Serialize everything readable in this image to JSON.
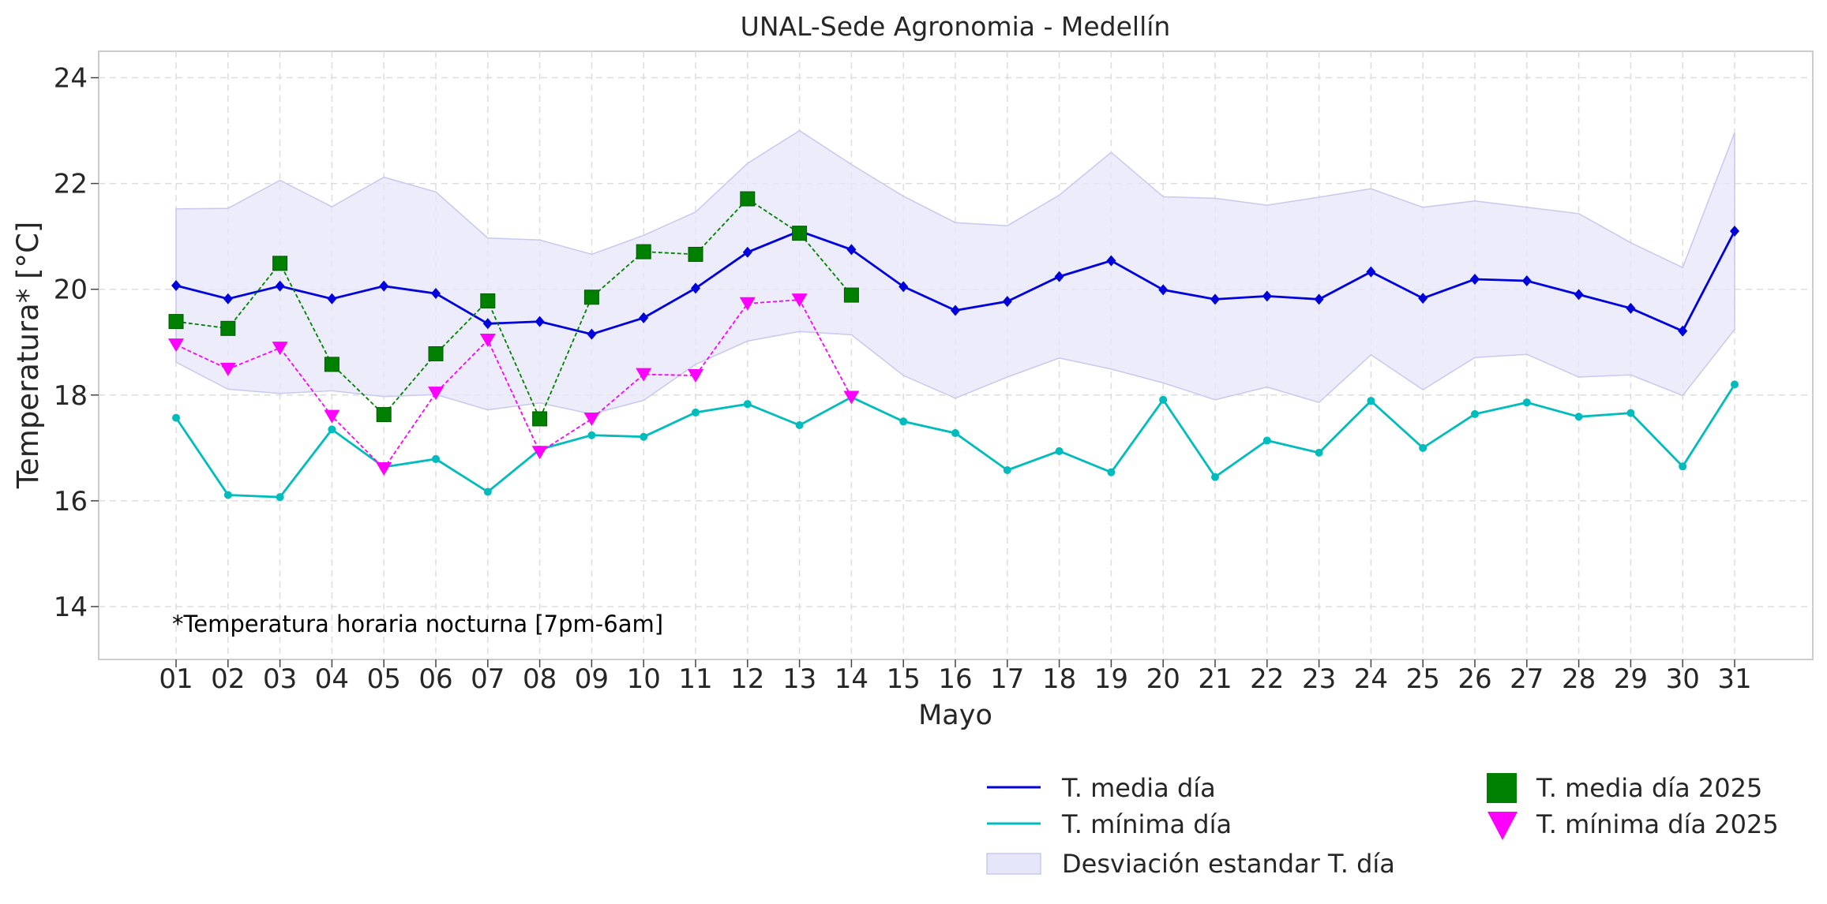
{
  "chart_data": {
    "type": "line",
    "title": "UNAL-Sede Agronomia - Medellín",
    "xlabel": "Mayo",
    "ylabel": "Temperatura* [°C]",
    "annotation": "*Temperatura horaria nocturna [7pm-6am]",
    "ylim": [
      13,
      24.5
    ],
    "yticks": [
      "14",
      "16",
      "18",
      "20",
      "22",
      "24"
    ],
    "categories": [
      "01",
      "02",
      "03",
      "04",
      "05",
      "06",
      "07",
      "08",
      "09",
      "10",
      "11",
      "12",
      "13",
      "14",
      "15",
      "16",
      "17",
      "18",
      "19",
      "20",
      "21",
      "22",
      "23",
      "24",
      "25",
      "26",
      "27",
      "28",
      "29",
      "30",
      "31"
    ],
    "grid": true,
    "legend_position": "bottom-right",
    "series": [
      {
        "name": "T. media día",
        "color": "#0000dd",
        "style": "solid",
        "marker": "diamond",
        "values": [
          20.07,
          19.82,
          20.06,
          19.82,
          20.06,
          19.92,
          19.35,
          19.39,
          19.15,
          19.46,
          20.02,
          20.7,
          21.1,
          20.75,
          20.05,
          19.6,
          19.77,
          20.24,
          20.54,
          19.99,
          19.81,
          19.87,
          19.81,
          20.33,
          19.83,
          20.19,
          20.16,
          19.9,
          19.64,
          19.21,
          21.1
        ]
      },
      {
        "name": "T. mínima día",
        "color": "#00bcbc",
        "style": "solid",
        "marker": "circle",
        "values": [
          17.57,
          16.11,
          16.07,
          17.35,
          16.64,
          16.79,
          16.17,
          16.97,
          17.24,
          17.21,
          17.67,
          17.83,
          17.43,
          17.96,
          17.5,
          17.28,
          16.58,
          16.94,
          16.54,
          17.91,
          16.45,
          17.14,
          16.91,
          17.89,
          17.0,
          17.64,
          17.86,
          17.59,
          17.66,
          16.65,
          18.2
        ]
      },
      {
        "name": "T. media día 2025",
        "color": "#008000",
        "style": "dashed",
        "marker": "square",
        "values": [
          19.39,
          19.26,
          20.49,
          18.58,
          17.63,
          18.78,
          19.78,
          17.55,
          19.85,
          20.71,
          20.66,
          21.71,
          21.06,
          19.89,
          null,
          null,
          null,
          null,
          null,
          null,
          null,
          null,
          null,
          null,
          null,
          null,
          null,
          null,
          null,
          null,
          null
        ]
      },
      {
        "name": "T. mínima día 2025",
        "color": "#ff00ff",
        "style": "dashed",
        "marker": "triangle-down",
        "values": [
          18.95,
          18.49,
          18.89,
          17.6,
          16.61,
          18.04,
          19.04,
          16.92,
          17.55,
          18.39,
          18.37,
          19.73,
          19.8,
          17.96,
          null,
          null,
          null,
          null,
          null,
          null,
          null,
          null,
          null,
          null,
          null,
          null,
          null,
          null,
          null,
          null,
          null
        ]
      }
    ],
    "band": {
      "name": "Desviación estandar T. día",
      "color": "#e6e6fa",
      "edge_color": "#c8c8f0",
      "upper": [
        21.52,
        21.53,
        22.06,
        21.56,
        22.12,
        21.84,
        20.97,
        20.93,
        20.66,
        21.02,
        21.46,
        22.38,
        23.0,
        22.36,
        21.76,
        21.26,
        21.2,
        21.78,
        22.59,
        21.75,
        21.72,
        21.59,
        21.74,
        21.9,
        21.55,
        21.67,
        21.55,
        21.43,
        20.88,
        20.41,
        22.96
      ],
      "lower": [
        18.62,
        18.11,
        18.03,
        18.08,
        17.97,
        18.01,
        17.72,
        17.85,
        17.64,
        17.9,
        18.58,
        19.02,
        19.2,
        19.14,
        18.37,
        17.94,
        18.34,
        18.7,
        18.49,
        18.23,
        17.91,
        18.15,
        17.86,
        18.76,
        18.1,
        18.71,
        18.77,
        18.34,
        18.38,
        17.99,
        19.24
      ]
    }
  }
}
